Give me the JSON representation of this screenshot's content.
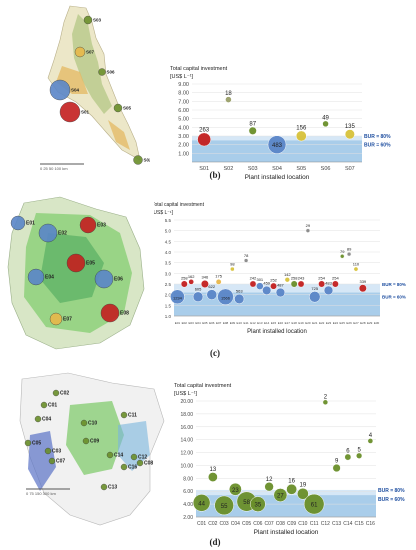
{
  "panels": [
    {
      "label": "(b)",
      "map": {
        "scale_bar": "0  25  50     100 km",
        "sites": [
          {
            "name": "S03",
            "color": "#6a8f2a"
          },
          {
            "name": "S07",
            "color": "#e8b84a"
          },
          {
            "name": "S06",
            "color": "#6a8f2a"
          },
          {
            "name": "S04",
            "color": "#5a86c8"
          },
          {
            "name": "S05",
            "color": "#6a8f2a"
          },
          {
            "name": "S01",
            "color": "#c41f1f"
          },
          {
            "name": "S02",
            "color": "#6a8f2a"
          }
        ]
      },
      "chart_data": {
        "type": "scatter",
        "ylabel": "Total capital investment",
        "yunit": "[US$ L⁻¹]",
        "xlabel": "Plant installed location",
        "categories": [
          "S01",
          "S02",
          "S03",
          "S04",
          "S05",
          "S06",
          "S07"
        ],
        "ylim": [
          0,
          9
        ],
        "yticks": [
          1.0,
          2.0,
          3.0,
          4.0,
          5.0,
          6.0,
          7.0,
          8.0,
          9.0
        ],
        "bands": [
          {
            "label": "BUR = 80%",
            "y": 3.0
          },
          {
            "label": "BUR = 60%",
            "y": 2.5
          }
        ],
        "points": [
          {
            "x": "S01",
            "y": 2.6,
            "label": "263",
            "color": "#c41f1f"
          },
          {
            "x": "S02",
            "y": 7.2,
            "label": "18",
            "color": "#9aa06a"
          },
          {
            "x": "S03",
            "y": 3.6,
            "label": "87",
            "color": "#6a8f2a"
          },
          {
            "x": "S04",
            "y": 2.0,
            "label": "483",
            "color": "#5a86c8"
          },
          {
            "x": "S05",
            "y": 3.0,
            "label": "156",
            "color": "#d8c23a"
          },
          {
            "x": "S06",
            "y": 4.4,
            "label": "49",
            "color": "#6a8f2a"
          },
          {
            "x": "S07",
            "y": 3.2,
            "label": "135",
            "color": "#d8c23a"
          }
        ]
      }
    },
    {
      "label": "(c)",
      "map": {
        "sites": [
          {
            "name": "E01",
            "color": "#5a86c8"
          },
          {
            "name": "E02",
            "color": "#5a86c8"
          },
          {
            "name": "E03",
            "color": "#c41f1f"
          },
          {
            "name": "E04",
            "color": "#5a86c8"
          },
          {
            "name": "E05",
            "color": "#c41f1f"
          },
          {
            "name": "E06",
            "color": "#5a86c8"
          },
          {
            "name": "E07",
            "color": "#e8b84a"
          },
          {
            "name": "E08",
            "color": "#c41f1f"
          }
        ]
      },
      "chart_data": {
        "type": "scatter",
        "ylabel": "Total capital investment",
        "yunit": "[US$ L⁻¹]",
        "xlabel": "Plant installed location",
        "ylim": [
          1.0,
          5.5
        ],
        "yticks": [
          1.0,
          1.5,
          2.0,
          2.5,
          3.0,
          3.5,
          4.0,
          4.5,
          5.0,
          5.5
        ],
        "bands": [
          {
            "label": "BUR = 80%",
            "y": 2.5
          },
          {
            "label": "BUR = 60%",
            "y": 2.1
          }
        ],
        "categories": [
          "E01",
          "E02",
          "E03",
          "E04",
          "E05",
          "E06",
          "E07",
          "E08",
          "E09",
          "E10",
          "E11",
          "E12",
          "E13",
          "E14",
          "E15",
          "E16",
          "E17",
          "E18",
          "E19",
          "E20",
          "E21",
          "E22",
          "E23",
          "E24",
          "E25",
          "E26",
          "E27",
          "E28",
          "E29",
          "E30"
        ],
        "points": [
          {
            "x": "E01",
            "y": 1.9,
            "label": "1234",
            "color": "#5a86c8"
          },
          {
            "x": "E02",
            "y": 2.5,
            "label": "258",
            "color": "#c41f1f"
          },
          {
            "x": "E03",
            "y": 2.6,
            "label": "162",
            "color": "#c41f1f"
          },
          {
            "x": "E04",
            "y": 1.9,
            "label": "605",
            "color": "#5a86c8"
          },
          {
            "x": "E05",
            "y": 2.5,
            "label": "346",
            "color": "#c41f1f"
          },
          {
            "x": "E06",
            "y": 2.0,
            "label": "622",
            "color": "#5a86c8"
          },
          {
            "x": "E07",
            "y": 2.6,
            "label": "175",
            "color": "#e8b84a"
          },
          {
            "x": "E08",
            "y": 1.9,
            "label": "1566",
            "color": "#5a86c8"
          },
          {
            "x": "E09",
            "y": 3.2,
            "label": "98",
            "color": "#d8c23a"
          },
          {
            "x": "E10",
            "y": 1.8,
            "label": "563",
            "color": "#5a86c8"
          },
          {
            "x": "E11",
            "y": 3.6,
            "label": "78",
            "color": "#888888"
          },
          {
            "x": "E12",
            "y": 2.5,
            "label": "242",
            "color": "#c41f1f"
          },
          {
            "x": "E13",
            "y": 2.4,
            "label": "301",
            "color": "#5a86c8"
          },
          {
            "x": "E14",
            "y": 2.2,
            "label": "459",
            "color": "#5a86c8"
          },
          {
            "x": "E15",
            "y": 2.4,
            "label": "252",
            "color": "#c41f1f"
          },
          {
            "x": "E16",
            "y": 2.1,
            "label": "487",
            "color": "#5a86c8"
          },
          {
            "x": "E17",
            "y": 2.7,
            "label": "142",
            "color": "#d8c23a"
          },
          {
            "x": "E18",
            "y": 2.5,
            "label": "258",
            "color": "#6a8f2a"
          },
          {
            "x": "E19",
            "y": 2.5,
            "label": "243",
            "color": "#c41f1f"
          },
          {
            "x": "E20",
            "y": 5.0,
            "label": "29",
            "color": "#888888"
          },
          {
            "x": "E21",
            "y": 1.9,
            "label": "725",
            "color": "#5a86c8"
          },
          {
            "x": "E22",
            "y": 2.5,
            "label": "254",
            "color": "#c41f1f"
          },
          {
            "x": "E23",
            "y": 2.2,
            "label": "483",
            "color": "#5a86c8"
          },
          {
            "x": "E24",
            "y": 2.5,
            "label": "254",
            "color": "#c41f1f"
          },
          {
            "x": "E25",
            "y": 3.8,
            "label": "79",
            "color": "#6a8f2a"
          },
          {
            "x": "E26",
            "y": 3.9,
            "label": "89",
            "color": "#888888"
          },
          {
            "x": "E27",
            "y": 3.2,
            "label": "110",
            "color": "#d8c23a"
          },
          {
            "x": "E28",
            "y": 2.3,
            "label": "339",
            "color": "#c41f1f"
          }
        ]
      }
    },
    {
      "label": "(d)",
      "map": {
        "scale_bar": "0  75  150     300 km",
        "sites": [
          {
            "name": "C02",
            "color": "#6a8f2a"
          },
          {
            "name": "C01",
            "color": "#6a8f2a"
          },
          {
            "name": "C11",
            "color": "#6a8f2a"
          },
          {
            "name": "C04",
            "color": "#6a8f2a"
          },
          {
            "name": "C05",
            "color": "#6a8f2a"
          },
          {
            "name": "C10",
            "color": "#6a8f2a"
          },
          {
            "name": "C09",
            "color": "#6a8f2a"
          },
          {
            "name": "C03",
            "color": "#6a8f2a"
          },
          {
            "name": "C07",
            "color": "#6a8f2a"
          },
          {
            "name": "C14",
            "color": "#6a8f2a"
          },
          {
            "name": "C12",
            "color": "#6a8f2a"
          },
          {
            "name": "C16",
            "color": "#6a8f2a"
          },
          {
            "name": "C08",
            "color": "#6a8f2a"
          },
          {
            "name": "C13",
            "color": "#6a8f2a"
          }
        ]
      },
      "chart_data": {
        "type": "scatter",
        "ylabel": "Total capital investment",
        "yunit": "[US$ L⁻¹]",
        "xlabel": "Plant installed location",
        "categories": [
          "C01",
          "C02",
          "C03",
          "C04",
          "C05",
          "C06",
          "C07",
          "C08",
          "C09",
          "C10",
          "C11",
          "C12",
          "C13",
          "C14",
          "C15",
          "C16"
        ],
        "ylim": [
          2,
          20
        ],
        "yticks": [
          2.0,
          4.0,
          6.0,
          8.0,
          10.0,
          12.0,
          14.0,
          16.0,
          18.0,
          20.0
        ],
        "bands": [
          {
            "label": "BUR = 80%",
            "y": 6.2
          },
          {
            "label": "BUR = 60%",
            "y": 5.4
          }
        ],
        "points": [
          {
            "x": "C01",
            "y": 4.2,
            "label": "44",
            "color": "#6a8f2a"
          },
          {
            "x": "C02",
            "y": 8.2,
            "label": "13",
            "color": "#6a8f2a"
          },
          {
            "x": "C03",
            "y": 3.8,
            "label": "55",
            "color": "#6a8f2a"
          },
          {
            "x": "C04",
            "y": 6.3,
            "label": "23",
            "color": "#6a8f2a"
          },
          {
            "x": "C05",
            "y": 4.4,
            "label": "58",
            "color": "#6a8f2a"
          },
          {
            "x": "C06",
            "y": 4.0,
            "label": "35",
            "color": "#6a8f2a"
          },
          {
            "x": "C07",
            "y": 6.7,
            "label": "12",
            "color": "#6a8f2a"
          },
          {
            "x": "C08",
            "y": 5.4,
            "label": "27",
            "color": "#6a8f2a"
          },
          {
            "x": "C09",
            "y": 6.3,
            "label": "16",
            "color": "#6a8f2a"
          },
          {
            "x": "C10",
            "y": 5.6,
            "label": "19",
            "color": "#6a8f2a"
          },
          {
            "x": "C11",
            "y": 4.0,
            "label": "61",
            "color": "#6a8f2a"
          },
          {
            "x": "C12",
            "y": 19.8,
            "label": "2",
            "color": "#6a8f2a"
          },
          {
            "x": "C13",
            "y": 9.6,
            "label": "9",
            "color": "#6a8f2a"
          },
          {
            "x": "C14",
            "y": 11.3,
            "label": "6",
            "color": "#6a8f2a"
          },
          {
            "x": "C15",
            "y": 11.5,
            "label": "5",
            "color": "#6a8f2a"
          },
          {
            "x": "C16",
            "y": 13.8,
            "label": "4",
            "color": "#6a8f2a"
          }
        ]
      }
    }
  ]
}
